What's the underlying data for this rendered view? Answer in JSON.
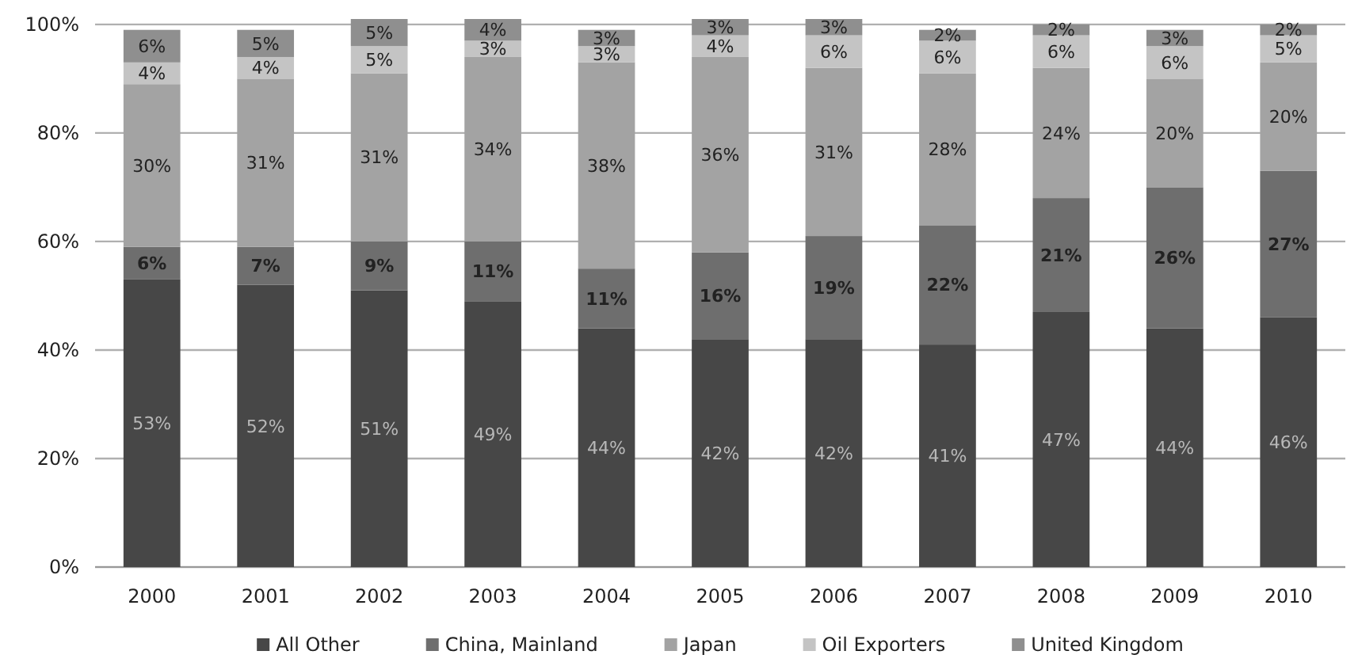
{
  "chart_data": {
    "type": "bar",
    "stacked": true,
    "grid": "y",
    "legend": "bottom",
    "categories": [
      "2000",
      "2001",
      "2002",
      "2003",
      "2004",
      "2005",
      "2006",
      "2007",
      "2008",
      "2009",
      "2010"
    ],
    "ylim": [
      0,
      101
    ],
    "yticks": [
      {
        "value": 0,
        "label": "0%"
      },
      {
        "value": 20,
        "label": "20%"
      },
      {
        "value": 40,
        "label": "40%"
      },
      {
        "value": 60,
        "label": "60%"
      },
      {
        "value": 80,
        "label": "80%"
      },
      {
        "value": 100,
        "label": "100%"
      }
    ],
    "series": [
      {
        "name": "All Other",
        "color": "#474747",
        "values": [
          53,
          52,
          51,
          49,
          44,
          42,
          42,
          41,
          47,
          44,
          46
        ],
        "value_labels": [
          "53%",
          "52%",
          "51%",
          "49%",
          "44%",
          "42%",
          "42%",
          "41%",
          "47%",
          "44%",
          "46%"
        ]
      },
      {
        "name": "China, Mainland",
        "color": "#6e6e6e",
        "values": [
          6,
          7,
          9,
          11,
          11,
          16,
          19,
          22,
          21,
          26,
          27
        ],
        "value_labels": [
          "6%",
          "7%",
          "9%",
          "11%",
          "11%",
          "16%",
          "19%",
          "22%",
          "21%",
          "26%",
          "27%"
        ]
      },
      {
        "name": "Japan",
        "color": "#a3a3a3",
        "values": [
          30,
          31,
          31,
          34,
          38,
          36,
          31,
          28,
          24,
          20,
          20
        ],
        "value_labels": [
          "30%",
          "31%",
          "31%",
          "34%",
          "38%",
          "36%",
          "31%",
          "28%",
          "24%",
          "20%",
          "20%"
        ]
      },
      {
        "name": "Oil Exporters",
        "color": "#c4c4c4",
        "values": [
          4,
          4,
          5,
          3,
          3,
          4,
          6,
          6,
          6,
          6,
          5
        ],
        "value_labels": [
          "4%",
          "4%",
          "5%",
          "3%",
          "3%",
          "4%",
          "6%",
          "6%",
          "6%",
          "6%",
          "5%"
        ]
      },
      {
        "name": "United Kingdom",
        "color": "#8f8f8f",
        "values": [
          6,
          5,
          5,
          4,
          3,
          3,
          3,
          2,
          2,
          3,
          2
        ],
        "value_labels": [
          "6%",
          "5%",
          "5%",
          "4%",
          "3%",
          "3%",
          "3%",
          "2%",
          "2%",
          "3%",
          "2%"
        ]
      }
    ]
  }
}
